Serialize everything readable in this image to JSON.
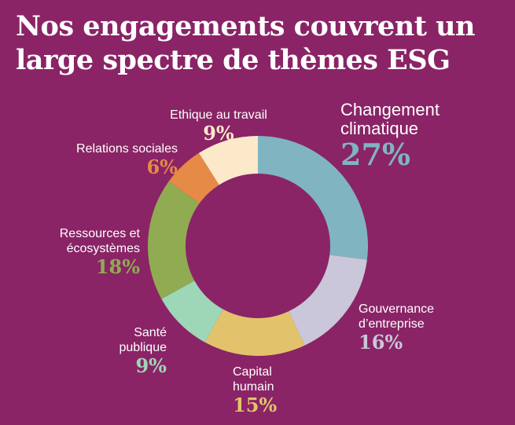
{
  "title": {
    "line1": "Nos engagements couvrent un",
    "line2": "large spectre de thèmes ESG"
  },
  "colors": {
    "background": "#8a2466"
  },
  "chart_data": {
    "type": "pie",
    "donut": true,
    "title": "Nos engagements couvrent un large spectre de thèmes ESG",
    "unit": "%",
    "slices": [
      {
        "name": "Changement climatique",
        "value": 27,
        "label": "27%",
        "color": "#80b4c1"
      },
      {
        "name": "Gouvernance d’entreprise",
        "value": 16,
        "label": "16%",
        "color": "#c9c7d9"
      },
      {
        "name": "Capital humain",
        "value": 15,
        "label": "15%",
        "color": "#e2c36b"
      },
      {
        "name": "Santé publique",
        "value": 9,
        "label": "9%",
        "color": "#9ed6b8"
      },
      {
        "name": "Ressources et écosystèmes",
        "value": 18,
        "label": "18%",
        "color": "#90ab52"
      },
      {
        "name": "Relations sociales",
        "value": 6,
        "label": "6%",
        "color": "#e58a47"
      },
      {
        "name": "Ethique au travail",
        "value": 9,
        "label": "9%",
        "color": "#fbe9c9"
      }
    ]
  },
  "labels": {
    "climat": {
      "line1": "Changement",
      "line2": "climatique",
      "pct": "27%"
    },
    "gouvernance": {
      "line1": "Gouvernance",
      "line2": "d’entreprise",
      "pct": "16%"
    },
    "capital": {
      "line1": "Capital",
      "line2": "humain",
      "pct": "15%"
    },
    "sante": {
      "line1": "Santé",
      "line2": "publique",
      "pct": "9%"
    },
    "ressources": {
      "line1": "Ressources et",
      "line2": "écosystèmes",
      "pct": "18%"
    },
    "relations": {
      "line1": "Relations sociales",
      "pct": "6%"
    },
    "ethique": {
      "line1": "Ethique au travail",
      "pct": "9%"
    }
  }
}
